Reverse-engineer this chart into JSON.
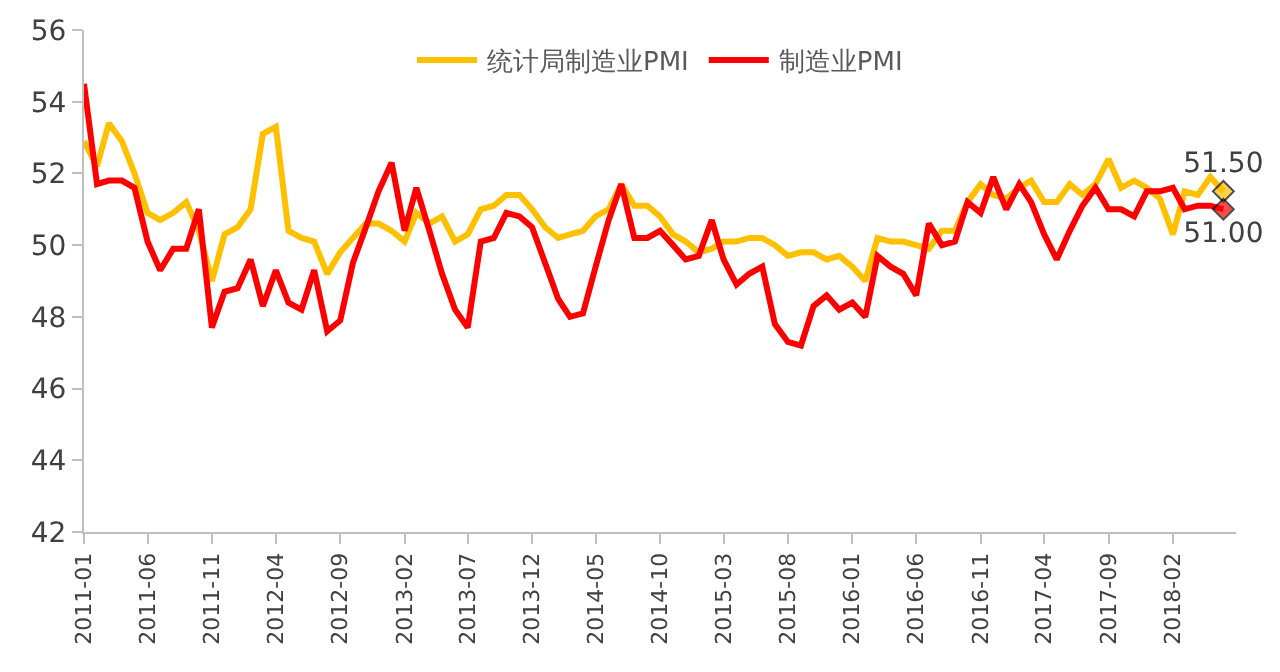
{
  "chart_data": {
    "type": "line",
    "x": [
      "2011-01",
      "2011-02",
      "2011-03",
      "2011-04",
      "2011-05",
      "2011-06",
      "2011-07",
      "2011-08",
      "2011-09",
      "2011-10",
      "2011-11",
      "2011-12",
      "2012-01",
      "2012-02",
      "2012-03",
      "2012-04",
      "2012-05",
      "2012-06",
      "2012-07",
      "2012-08",
      "2012-09",
      "2012-10",
      "2012-11",
      "2012-12",
      "2013-01",
      "2013-02",
      "2013-03",
      "2013-04",
      "2013-05",
      "2013-06",
      "2013-07",
      "2013-08",
      "2013-09",
      "2013-10",
      "2013-11",
      "2013-12",
      "2014-01",
      "2014-02",
      "2014-03",
      "2014-04",
      "2014-05",
      "2014-06",
      "2014-07",
      "2014-08",
      "2014-09",
      "2014-10",
      "2014-11",
      "2014-12",
      "2015-01",
      "2015-02",
      "2015-03",
      "2015-04",
      "2015-05",
      "2015-06",
      "2015-07",
      "2015-08",
      "2015-09",
      "2015-10",
      "2015-11",
      "2015-12",
      "2016-01",
      "2016-02",
      "2016-03",
      "2016-04",
      "2016-05",
      "2016-06",
      "2016-07",
      "2016-08",
      "2016-09",
      "2016-10",
      "2016-11",
      "2016-12",
      "2017-01",
      "2017-02",
      "2017-03",
      "2017-04",
      "2017-05",
      "2017-06",
      "2017-07",
      "2017-08",
      "2017-09",
      "2017-10",
      "2017-11",
      "2017-12",
      "2018-01",
      "2018-02",
      "2018-03",
      "2018-04",
      "2018-05",
      "2018-06"
    ],
    "series": [
      {
        "name": "统计局制造业PMI",
        "color": "#ffc000",
        "values": [
          52.9,
          52.2,
          53.4,
          52.9,
          52.0,
          50.9,
          50.7,
          50.9,
          51.2,
          50.4,
          49.0,
          50.3,
          50.5,
          51.0,
          53.1,
          53.3,
          50.4,
          50.2,
          50.1,
          49.2,
          49.8,
          50.2,
          50.6,
          50.6,
          50.4,
          50.1,
          50.9,
          50.6,
          50.8,
          50.1,
          50.3,
          51.0,
          51.1,
          51.4,
          51.4,
          51.0,
          50.5,
          50.2,
          50.3,
          50.4,
          50.8,
          51.0,
          51.7,
          51.1,
          51.1,
          50.8,
          50.3,
          50.1,
          49.8,
          49.9,
          50.1,
          50.1,
          50.2,
          50.2,
          50.0,
          49.7,
          49.8,
          49.8,
          49.6,
          49.7,
          49.4,
          49.0,
          50.2,
          50.1,
          50.1,
          50.0,
          49.9,
          50.4,
          50.4,
          51.2,
          51.7,
          51.4,
          51.3,
          51.6,
          51.8,
          51.2,
          51.2,
          51.7,
          51.4,
          51.7,
          52.4,
          51.6,
          51.8,
          51.6,
          51.3,
          50.3,
          51.5,
          51.4,
          51.9,
          51.5
        ],
        "value_labels": [
          null,
          null,
          null,
          null,
          null,
          null,
          null,
          null,
          null,
          null,
          null,
          null,
          null,
          null,
          null,
          null,
          null,
          null,
          null,
          null,
          null,
          null,
          null,
          null,
          null,
          null,
          null,
          null,
          null,
          null,
          null,
          null,
          null,
          null,
          null,
          null,
          null,
          null,
          null,
          null,
          null,
          null,
          null,
          null,
          null,
          null,
          null,
          null,
          null,
          null,
          null,
          null,
          null,
          null,
          null,
          null,
          null,
          null,
          null,
          null,
          null,
          null,
          null,
          null,
          null,
          null,
          null,
          null,
          null,
          null,
          null,
          null,
          null,
          null,
          null,
          null,
          null,
          null,
          null,
          null,
          null,
          null,
          null,
          null,
          null,
          null,
          null,
          null,
          null,
          "51.50"
        ]
      },
      {
        "name": "制造业PMI",
        "color": "#ff0000",
        "values": [
          54.5,
          51.7,
          51.8,
          51.8,
          51.6,
          50.1,
          49.3,
          49.9,
          49.9,
          51.0,
          47.7,
          48.7,
          48.8,
          49.6,
          48.3,
          49.3,
          48.4,
          48.2,
          49.3,
          47.6,
          47.9,
          49.5,
          50.5,
          51.5,
          52.3,
          50.4,
          51.6,
          50.4,
          49.2,
          48.2,
          47.7,
          50.1,
          50.2,
          50.9,
          50.8,
          50.5,
          49.5,
          48.5,
          48.0,
          48.1,
          49.4,
          50.7,
          51.7,
          50.2,
          50.2,
          50.4,
          50.0,
          49.6,
          49.7,
          50.7,
          49.6,
          48.9,
          49.2,
          49.4,
          47.8,
          47.3,
          47.2,
          48.3,
          48.6,
          48.2,
          48.4,
          48.0,
          49.7,
          49.4,
          49.2,
          48.6,
          50.6,
          50.0,
          50.1,
          51.2,
          50.9,
          51.9,
          51.0,
          51.7,
          51.2,
          50.3,
          49.6,
          50.4,
          51.1,
          51.6,
          51.0,
          51.0,
          50.8,
          51.5,
          51.5,
          51.6,
          51.0,
          51.1,
          51.1,
          51.0
        ],
        "value_labels": [
          null,
          null,
          null,
          null,
          null,
          null,
          null,
          null,
          null,
          null,
          null,
          null,
          null,
          null,
          null,
          null,
          null,
          null,
          null,
          null,
          null,
          null,
          null,
          null,
          null,
          null,
          null,
          null,
          null,
          null,
          null,
          null,
          null,
          null,
          null,
          null,
          null,
          null,
          null,
          null,
          null,
          null,
          null,
          null,
          null,
          null,
          null,
          null,
          null,
          null,
          null,
          null,
          null,
          null,
          null,
          null,
          null,
          null,
          null,
          null,
          null,
          null,
          null,
          null,
          null,
          null,
          null,
          null,
          null,
          null,
          null,
          null,
          null,
          null,
          null,
          null,
          null,
          null,
          null,
          null,
          null,
          null,
          null,
          null,
          null,
          null,
          null,
          null,
          null,
          "51.00"
        ]
      }
    ],
    "xlim": [
      "2011-01",
      "2018-07"
    ],
    "xticks": [
      "2011-01",
      "2011-06",
      "2011-11",
      "2012-04",
      "2012-09",
      "2013-02",
      "2013-07",
      "2013-12",
      "2014-05",
      "2014-10",
      "2015-03",
      "2015-08",
      "2016-01",
      "2016-06",
      "2016-11",
      "2017-04",
      "2017-09",
      "2018-02"
    ],
    "ylim": [
      42,
      56
    ],
    "yticks": [
      42,
      44,
      46,
      48,
      50,
      52,
      54,
      56
    ],
    "grid": false,
    "legend": "top"
  }
}
